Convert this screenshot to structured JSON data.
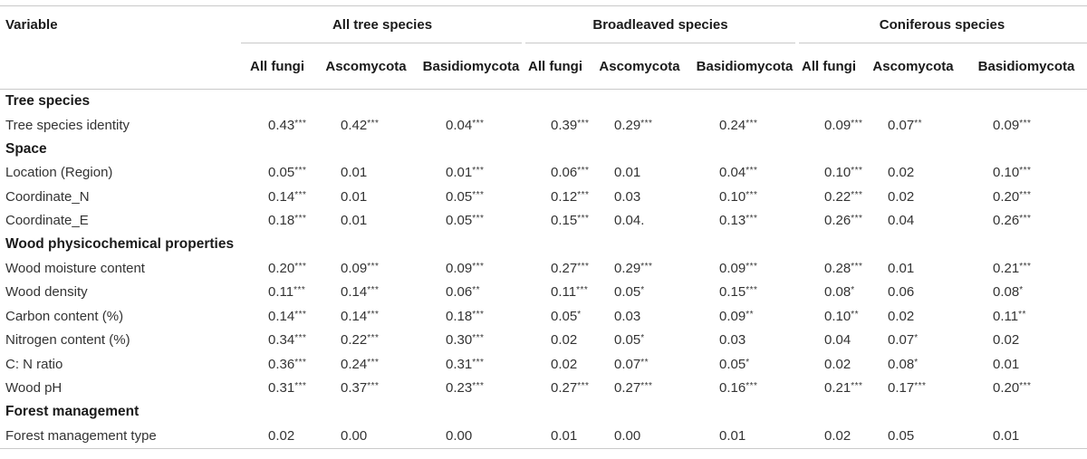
{
  "header": {
    "variable": "Variable",
    "groups": [
      "All tree species",
      "Broadleaved species",
      "Coniferous species"
    ],
    "subheaders": [
      "All fungi",
      "Ascomycota",
      "Basidiomycota",
      "All fungi",
      "Ascomycota",
      "Basidiomycota",
      "All fungi",
      "Ascomycota",
      "Basidiomycota"
    ]
  },
  "sections": [
    {
      "title": "Tree species",
      "rows": [
        {
          "label": "Tree species identity",
          "values": [
            [
              "0.43",
              "***"
            ],
            [
              "0.42",
              "***"
            ],
            [
              "0.04",
              "***"
            ],
            [
              "0.39",
              "***"
            ],
            [
              "0.29",
              "***"
            ],
            [
              "0.24",
              "***"
            ],
            [
              "0.09",
              "***"
            ],
            [
              "0.07",
              "**"
            ],
            [
              "0.09",
              "***"
            ]
          ]
        }
      ]
    },
    {
      "title": "Space",
      "rows": [
        {
          "label": "Location (Region)",
          "values": [
            [
              "0.05",
              "***"
            ],
            [
              "0.01",
              ""
            ],
            [
              "0.01",
              "***"
            ],
            [
              "0.06",
              "***"
            ],
            [
              "0.01",
              ""
            ],
            [
              "0.04",
              "***"
            ],
            [
              "0.10",
              "***"
            ],
            [
              "0.02",
              ""
            ],
            [
              "0.10",
              "***"
            ]
          ]
        },
        {
          "label": "Coordinate_N",
          "values": [
            [
              "0.14",
              "***"
            ],
            [
              "0.01",
              ""
            ],
            [
              "0.05",
              "***"
            ],
            [
              "0.12",
              "***"
            ],
            [
              "0.03",
              ""
            ],
            [
              "0.10",
              "***"
            ],
            [
              "0.22",
              "***"
            ],
            [
              "0.02",
              ""
            ],
            [
              "0.20",
              "***"
            ]
          ]
        },
        {
          "label": "Coordinate_E",
          "values": [
            [
              "0.18",
              "***"
            ],
            [
              "0.01",
              ""
            ],
            [
              "0.05",
              "***"
            ],
            [
              "0.15",
              "***"
            ],
            [
              "0.04.",
              ""
            ],
            [
              "0.13",
              "***"
            ],
            [
              "0.26",
              "***"
            ],
            [
              "0.04",
              ""
            ],
            [
              "0.26",
              "***"
            ]
          ]
        }
      ]
    },
    {
      "title": "Wood physicochemical properties",
      "rows": [
        {
          "label": "Wood moisture content",
          "values": [
            [
              "0.20",
              "***"
            ],
            [
              "0.09",
              "***"
            ],
            [
              "0.09",
              "***"
            ],
            [
              "0.27",
              "***"
            ],
            [
              "0.29",
              "***"
            ],
            [
              "0.09",
              "***"
            ],
            [
              "0.28",
              "***"
            ],
            [
              "0.01",
              ""
            ],
            [
              "0.21",
              "***"
            ]
          ]
        },
        {
          "label": "Wood density",
          "values": [
            [
              "0.11",
              "***"
            ],
            [
              "0.14",
              "***"
            ],
            [
              "0.06",
              "**"
            ],
            [
              "0.11",
              "***"
            ],
            [
              "0.05",
              "*"
            ],
            [
              "0.15",
              "***"
            ],
            [
              "0.08",
              "*"
            ],
            [
              "0.06",
              ""
            ],
            [
              "0.08",
              "*"
            ]
          ]
        },
        {
          "label": "Carbon content (%)",
          "values": [
            [
              "0.14",
              "***"
            ],
            [
              "0.14",
              "***"
            ],
            [
              "0.18",
              "***"
            ],
            [
              "0.05",
              "*"
            ],
            [
              "0.03",
              ""
            ],
            [
              "0.09",
              "**"
            ],
            [
              "0.10",
              "**"
            ],
            [
              "0.02",
              ""
            ],
            [
              "0.11",
              "**"
            ]
          ]
        },
        {
          "label": "Nitrogen content (%)",
          "values": [
            [
              "0.34",
              "***"
            ],
            [
              "0.22",
              "***"
            ],
            [
              "0.30",
              "***"
            ],
            [
              "0.02",
              ""
            ],
            [
              "0.05",
              "*"
            ],
            [
              "0.03",
              ""
            ],
            [
              "0.04",
              ""
            ],
            [
              "0.07",
              "*"
            ],
            [
              "0.02",
              ""
            ]
          ]
        },
        {
          "label": "C: N ratio",
          "values": [
            [
              "0.36",
              "***"
            ],
            [
              "0.24",
              "***"
            ],
            [
              "0.31",
              "***"
            ],
            [
              "0.02",
              ""
            ],
            [
              "0.07",
              "**"
            ],
            [
              "0.05",
              "*"
            ],
            [
              "0.02",
              ""
            ],
            [
              "0.08",
              "*"
            ],
            [
              "0.01",
              ""
            ]
          ]
        },
        {
          "label": "Wood pH",
          "values": [
            [
              "0.31",
              "***"
            ],
            [
              "0.37",
              "***"
            ],
            [
              "0.23",
              "***"
            ],
            [
              "0.27",
              "***"
            ],
            [
              "0.27",
              "***"
            ],
            [
              "0.16",
              "***"
            ],
            [
              "0.21",
              "***"
            ],
            [
              "0.17",
              "***"
            ],
            [
              "0.20",
              "***"
            ]
          ]
        }
      ]
    },
    {
      "title": "Forest management",
      "rows": [
        {
          "label": "Forest management type",
          "values": [
            [
              "0.02",
              ""
            ],
            [
              "0.00",
              ""
            ],
            [
              "0.00",
              ""
            ],
            [
              "0.01",
              ""
            ],
            [
              "0.00",
              ""
            ],
            [
              "0.01",
              ""
            ],
            [
              "0.02",
              ""
            ],
            [
              "0.05",
              ""
            ],
            [
              "0.01",
              ""
            ]
          ]
        }
      ]
    }
  ]
}
